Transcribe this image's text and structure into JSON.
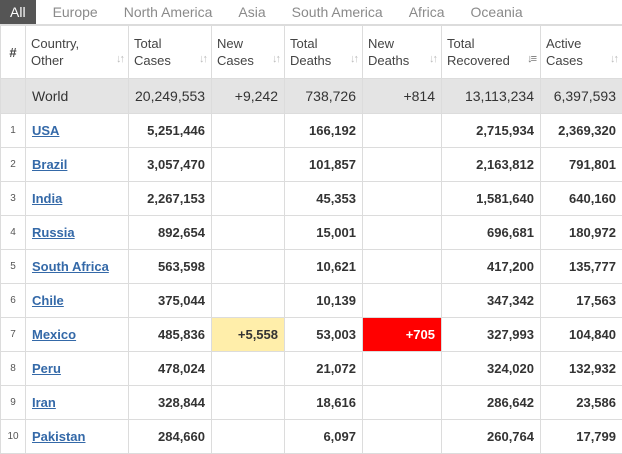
{
  "tabs": [
    "All",
    "Europe",
    "North America",
    "Asia",
    "South America",
    "Africa",
    "Oceania"
  ],
  "columns": {
    "rank": "#",
    "country": "Country, Other",
    "total_cases": "Total Cases",
    "new_cases": "New Cases",
    "total_deaths": "Total Deaths",
    "new_deaths": "New Deaths",
    "total_recovered": "Total Recovered",
    "active_cases": "Active Cases"
  },
  "world": {
    "name": "World",
    "total_cases": "20,249,553",
    "new_cases": "+9,242",
    "total_deaths": "738,726",
    "new_deaths": "+814",
    "total_recovered": "13,113,234",
    "active_cases": "6,397,593"
  },
  "rows": [
    {
      "rank": "1",
      "country": "USA",
      "total_cases": "5,251,446",
      "new_cases": "",
      "total_deaths": "166,192",
      "new_deaths": "",
      "total_recovered": "2,715,934",
      "active_cases": "2,369,320"
    },
    {
      "rank": "2",
      "country": "Brazil",
      "total_cases": "3,057,470",
      "new_cases": "",
      "total_deaths": "101,857",
      "new_deaths": "",
      "total_recovered": "2,163,812",
      "active_cases": "791,801"
    },
    {
      "rank": "3",
      "country": "India",
      "total_cases": "2,267,153",
      "new_cases": "",
      "total_deaths": "45,353",
      "new_deaths": "",
      "total_recovered": "1,581,640",
      "active_cases": "640,160"
    },
    {
      "rank": "4",
      "country": "Russia",
      "total_cases": "892,654",
      "new_cases": "",
      "total_deaths": "15,001",
      "new_deaths": "",
      "total_recovered": "696,681",
      "active_cases": "180,972"
    },
    {
      "rank": "5",
      "country": "South Africa",
      "total_cases": "563,598",
      "new_cases": "",
      "total_deaths": "10,621",
      "new_deaths": "",
      "total_recovered": "417,200",
      "active_cases": "135,777"
    },
    {
      "rank": "6",
      "country": "Chile",
      "total_cases": "375,044",
      "new_cases": "",
      "total_deaths": "10,139",
      "new_deaths": "",
      "total_recovered": "347,342",
      "active_cases": "17,563"
    },
    {
      "rank": "7",
      "country": "Mexico",
      "total_cases": "485,836",
      "new_cases": "+5,558",
      "total_deaths": "53,003",
      "new_deaths": "+705",
      "total_recovered": "327,993",
      "active_cases": "104,840"
    },
    {
      "rank": "8",
      "country": "Peru",
      "total_cases": "478,024",
      "new_cases": "",
      "total_deaths": "21,072",
      "new_deaths": "",
      "total_recovered": "324,020",
      "active_cases": "132,932"
    },
    {
      "rank": "9",
      "country": "Iran",
      "total_cases": "328,844",
      "new_cases": "",
      "total_deaths": "18,616",
      "new_deaths": "",
      "total_recovered": "286,642",
      "active_cases": "23,586"
    },
    {
      "rank": "10",
      "country": "Pakistan",
      "total_cases": "284,660",
      "new_cases": "",
      "total_deaths": "6,097",
      "new_deaths": "",
      "total_recovered": "260,764",
      "active_cases": "17,799"
    }
  ],
  "colors": {
    "active_tab_bg": "#555555",
    "world_row_bg": "#e4e4e4",
    "new_cases_highlight": "#ffeeaa",
    "new_deaths_highlight": "#ff0000",
    "link": "#3469a8"
  },
  "icons": {
    "sort": "sort-arrows-icon",
    "sort_active": "sort-descending-icon"
  }
}
